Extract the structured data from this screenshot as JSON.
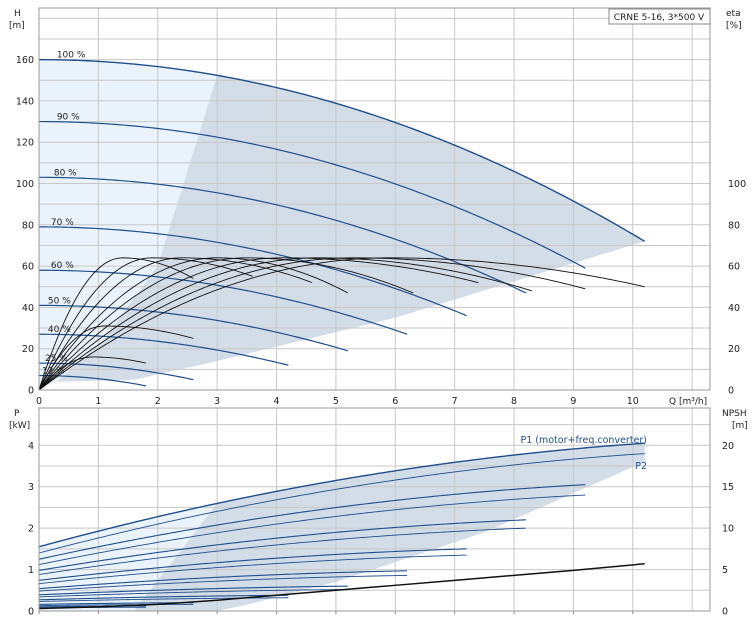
{
  "chart_data": [
    {
      "type": "line",
      "title": "CRNE 5-16, 3*500 V",
      "xlabel": "Q [m³/h]",
      "ylabel_left": [
        "H",
        "[m]"
      ],
      "ylabel_right": [
        "eta",
        "[%]"
      ],
      "xlim": [
        0,
        11.3
      ],
      "ylim_left": [
        0,
        185
      ],
      "ylim_right": [
        0,
        185
      ],
      "x_ticks": [
        "0",
        "1",
        "2",
        "3",
        "4",
        "5",
        "6",
        "7",
        "8",
        "9",
        "10"
      ],
      "y_ticks_left": [
        "0",
        "20",
        "40",
        "60",
        "80",
        "100",
        "120",
        "140",
        "160"
      ],
      "y_ticks_right": [
        "0",
        "20",
        "40",
        "60",
        "80",
        "100"
      ],
      "speed_labels": [
        {
          "text": "100 %",
          "x": 0.3,
          "y": 160
        },
        {
          "text": "90 %",
          "x": 0.3,
          "y": 130
        },
        {
          "text": "80 %",
          "x": 0.25,
          "y": 103
        },
        {
          "text": "70 %",
          "x": 0.2,
          "y": 79
        },
        {
          "text": "60 %",
          "x": 0.2,
          "y": 58
        },
        {
          "text": "50 %",
          "x": 0.15,
          "y": 41
        },
        {
          "text": "40 %",
          "x": 0.15,
          "y": 27
        },
        {
          "text": "25 %",
          "x": 0.1,
          "y": 13
        },
        {
          "text": "12 %",
          "x": 0.05,
          "y": 7
        }
      ],
      "head_curves": [
        {
          "speed": 1.0,
          "qmax": 10.2,
          "h0": 160,
          "h_end": 72
        },
        {
          "speed": 0.9,
          "qmax": 9.2,
          "h0": 130,
          "h_end": 59
        },
        {
          "speed": 0.8,
          "qmax": 8.2,
          "h0": 103,
          "h_end": 47
        },
        {
          "speed": 0.7,
          "qmax": 7.2,
          "h0": 79,
          "h_end": 36
        },
        {
          "speed": 0.6,
          "qmax": 6.2,
          "h0": 58,
          "h_end": 27
        },
        {
          "speed": 0.5,
          "qmax": 5.2,
          "h0": 41,
          "h_end": 19
        },
        {
          "speed": 0.4,
          "qmax": 4.2,
          "h0": 27,
          "h_end": 12
        },
        {
          "speed": 0.25,
          "qmax": 2.6,
          "h0": 13,
          "h_end": 5
        },
        {
          "speed": 0.12,
          "qmax": 1.8,
          "h0": 7,
          "h_end": 2
        }
      ],
      "eta_curves": [
        {
          "peak_q": 1.4,
          "peak": 64,
          "qmax": 2.6,
          "end": 54
        },
        {
          "peak_q": 1.9,
          "peak": 64,
          "qmax": 3.6,
          "end": 55
        },
        {
          "peak_q": 2.4,
          "peak": 64,
          "qmax": 4.6,
          "end": 52
        },
        {
          "peak_q": 3.0,
          "peak": 64,
          "qmax": 5.2,
          "end": 47
        },
        {
          "peak_q": 3.5,
          "peak": 64,
          "qmax": 6.3,
          "end": 47
        },
        {
          "peak_q": 4.1,
          "peak": 64,
          "qmax": 7.4,
          "end": 52
        },
        {
          "peak_q": 4.7,
          "peak": 64,
          "qmax": 8.3,
          "end": 48
        },
        {
          "peak_q": 5.3,
          "peak": 64,
          "qmax": 9.2,
          "end": 49
        },
        {
          "peak_q": 5.9,
          "peak": 64,
          "qmax": 10.2,
          "end": 50
        },
        {
          "peak_q": 1.1,
          "peak": 31,
          "qmax": 2.6,
          "end": 25
        },
        {
          "peak_q": 0.9,
          "peak": 16,
          "qmax": 1.8,
          "end": 13
        }
      ]
    },
    {
      "type": "line",
      "xlabel": "",
      "ylabel_left": [
        "P",
        "[kW]"
      ],
      "ylabel_right": [
        "NPSH",
        "[m]"
      ],
      "xlim": [
        0,
        11.3
      ],
      "ylim_left": [
        0,
        4.9
      ],
      "ylim_right": [
        0,
        24.5
      ],
      "y_ticks_left": [
        "0",
        "1",
        "2",
        "3",
        "4"
      ],
      "y_ticks_right": [
        "0",
        "5",
        "10",
        "15",
        "20"
      ],
      "series_labels": [
        "P1 (motor+freq.converter)",
        "P2"
      ],
      "power_curves": [
        {
          "qmax": 10.2,
          "p1_0": 1.55,
          "p1_end": 4.05,
          "p2_0": 1.4,
          "p2_end": 3.8
        },
        {
          "qmax": 9.2,
          "p1_0": 1.25,
          "p1_end": 3.05,
          "p2_0": 1.12,
          "p2_end": 2.8
        },
        {
          "qmax": 8.2,
          "p1_0": 0.98,
          "p1_end": 2.2,
          "p2_0": 0.88,
          "p2_end": 2.0
        },
        {
          "qmax": 7.2,
          "p1_0": 0.74,
          "p1_end": 1.5,
          "p2_0": 0.66,
          "p2_end": 1.35
        },
        {
          "qmax": 6.2,
          "p1_0": 0.54,
          "p1_end": 0.97,
          "p2_0": 0.48,
          "p2_end": 0.86
        },
        {
          "qmax": 5.2,
          "p1_0": 0.39,
          "p1_end": 0.6,
          "p2_0": 0.34,
          "p2_end": 0.52
        },
        {
          "qmax": 4.2,
          "p1_0": 0.27,
          "p1_end": 0.38,
          "p2_0": 0.23,
          "p2_end": 0.32
        },
        {
          "qmax": 2.6,
          "p1_0": 0.16,
          "p1_end": 0.2,
          "p2_0": 0.13,
          "p2_end": 0.16
        },
        {
          "qmax": 1.8,
          "p1_0": 0.1,
          "p1_end": 0.12,
          "p2_0": 0.08,
          "p2_end": 0.09
        }
      ],
      "npsh_curve": {
        "x": [
          0,
          1,
          2,
          3,
          4,
          5,
          6,
          7,
          8,
          9,
          10.2
        ],
        "y": [
          0.3,
          0.5,
          0.8,
          1.3,
          1.9,
          2.5,
          3.1,
          3.7,
          4.3,
          4.9,
          5.7
        ]
      }
    }
  ]
}
